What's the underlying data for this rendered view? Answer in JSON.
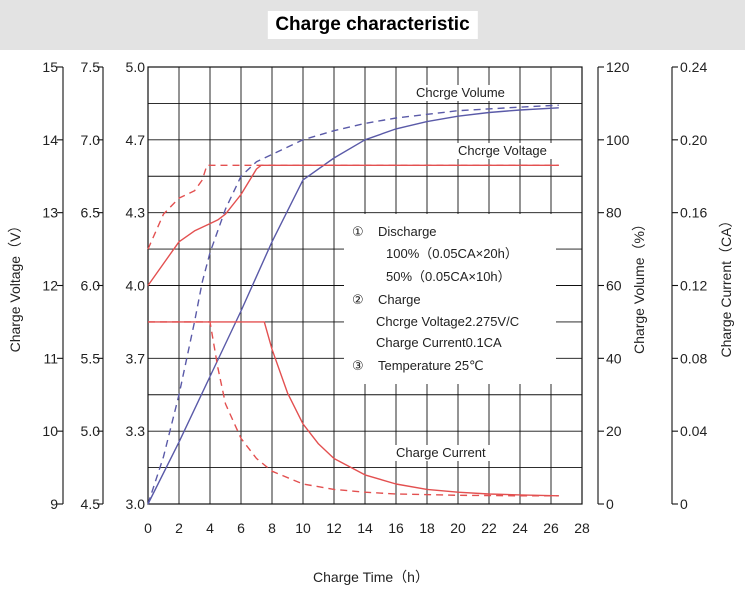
{
  "chart_data": {
    "type": "line",
    "title": "Charge characteristic",
    "xlabel": "Charge Time（h）",
    "xlim": [
      0,
      28
    ],
    "x_ticks": [
      0,
      2,
      4,
      6,
      8,
      10,
      12,
      14,
      16,
      18,
      20,
      22,
      24,
      26,
      28
    ],
    "y_axes": [
      {
        "label": "Charge Voltage（V）",
        "ticks": [
          "9",
          "10",
          "11",
          "12",
          "13",
          "14",
          "15"
        ]
      },
      {
        "label": "",
        "ticks": [
          "4.5",
          "5.0",
          "5.5",
          "6.0",
          "6.5",
          "7.0",
          "7.5"
        ]
      },
      {
        "label": "",
        "ticks": [
          "3.0",
          "3.3",
          "3.7",
          "4.0",
          "4.3",
          "4.7",
          "5.0"
        ]
      },
      {
        "label": "Charge Volume（%）",
        "ticks": [
          "0",
          "20",
          "40",
          "60",
          "80",
          "100",
          "120"
        ]
      },
      {
        "label": "Charge Current（CA）",
        "ticks": [
          "0",
          "0.04",
          "0.08",
          "0.12",
          "0.16",
          "0.20",
          "0.24"
        ]
      }
    ],
    "grid": true,
    "series": [
      {
        "name": "Charge Volume",
        "style": "solid",
        "color": "#5a5aa8",
        "x": [
          0,
          2,
          4,
          6,
          8,
          10,
          12,
          14,
          16,
          18,
          20,
          22,
          24,
          26.5
        ],
        "y": [
          0,
          17,
          35,
          53,
          72,
          89,
          95,
          100,
          103,
          105,
          106.5,
          107.5,
          108.2,
          108.8
        ],
        "unit": "%"
      },
      {
        "name": "",
        "style": "dashed",
        "color": "#5a5aa8",
        "x": [
          0,
          1,
          2,
          3,
          3.5,
          4,
          5,
          6,
          7,
          8,
          10,
          12,
          14,
          16,
          20,
          24,
          26.5
        ],
        "y": [
          0,
          13,
          30,
          50,
          61,
          69,
          81,
          90,
          94,
          96,
          100,
          102.5,
          104.5,
          106,
          108,
          109,
          109.5
        ],
        "unit": "%"
      },
      {
        "name": "Charge Voltage",
        "style": "solid",
        "color": "#e35050",
        "x": [
          0,
          1,
          2,
          3,
          4,
          4.5,
          5,
          6,
          7,
          7.3,
          26.5
        ],
        "y": [
          12.0,
          12.3,
          12.6,
          12.75,
          12.85,
          12.9,
          12.98,
          13.25,
          13.6,
          13.65,
          13.65
        ],
        "unit": "V"
      },
      {
        "name": "",
        "style": "dashed",
        "color": "#e35050",
        "x": [
          0,
          1,
          2,
          3,
          3.5,
          3.8,
          26.5
        ],
        "y": [
          12.5,
          12.98,
          13.2,
          13.3,
          13.45,
          13.65,
          13.65
        ],
        "unit": "V"
      },
      {
        "name": "Charge Current",
        "style": "solid",
        "color": "#e35050",
        "x": [
          0,
          7.5,
          8,
          9,
          10,
          11,
          12,
          14,
          16,
          18,
          20,
          22,
          24,
          26.5
        ],
        "y": [
          0.1,
          0.1,
          0.085,
          0.061,
          0.044,
          0.033,
          0.025,
          0.016,
          0.011,
          0.008,
          0.0065,
          0.0055,
          0.005,
          0.0045
        ],
        "unit": "CA"
      },
      {
        "name": "",
        "style": "dashed",
        "color": "#e35050",
        "x": [
          0,
          4,
          4.5,
          5,
          6,
          7,
          8,
          10,
          12,
          14,
          16,
          20,
          24,
          26.5
        ],
        "y": [
          0.1,
          0.1,
          0.075,
          0.055,
          0.036,
          0.025,
          0.018,
          0.011,
          0.008,
          0.0065,
          0.0055,
          0.0048,
          0.0045,
          0.0045
        ],
        "unit": "CA"
      }
    ],
    "legend_box": {
      "placement": "center",
      "lines": [
        {
          "mark": "①",
          "text": "Discharge"
        },
        {
          "mark": "",
          "text": "100%（0.05CA×20h）"
        },
        {
          "mark": "",
          "text": "50%（0.05CA×10h）"
        },
        {
          "mark": "②",
          "text": "Charge"
        },
        {
          "mark": "",
          "text": "Chcrge Voltage2.275V/C"
        },
        {
          "mark": "",
          "text": "Charge Current0.1CA"
        },
        {
          "mark": "③",
          "text": "Temperature 25℃"
        }
      ]
    },
    "curve_labels": [
      {
        "series": "Charge Volume",
        "text": "Chcrge Volume"
      },
      {
        "series": "Charge Voltage",
        "text": "Chcrge Voltage"
      },
      {
        "series": "Charge Current",
        "text": "Charge Current"
      }
    ]
  }
}
